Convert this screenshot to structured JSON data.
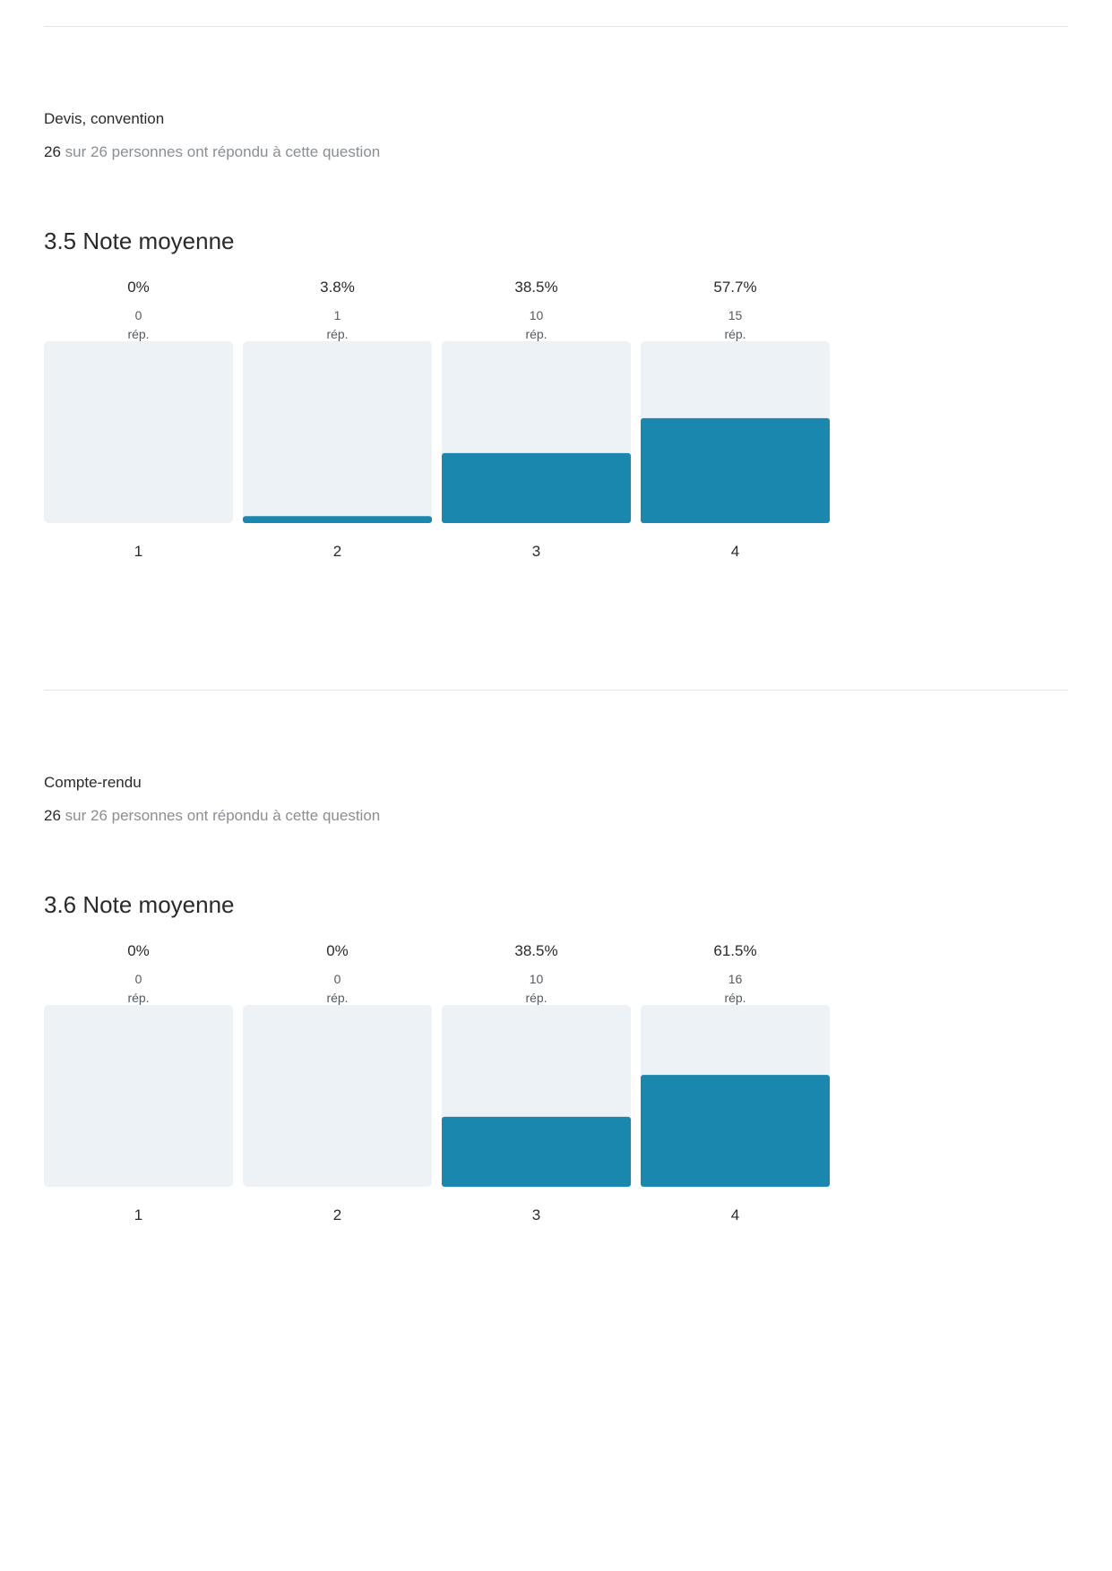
{
  "questions": [
    {
      "title": "Devis, convention",
      "responses": {
        "answered": "26",
        "text": "sur 26 personnes ont répondu à cette question"
      },
      "average": {
        "value": "3.5",
        "label": "Note moyenne"
      }
    },
    {
      "title": "Compte-rendu",
      "responses": {
        "answered": "26",
        "text": "sur 26 personnes ont répondu à cette question"
      },
      "average": {
        "value": "3.6",
        "label": "Note moyenne"
      }
    }
  ],
  "chart_data": [
    {
      "type": "bar",
      "categories": [
        "1",
        "2",
        "3",
        "4"
      ],
      "values": [
        0,
        3.8,
        38.5,
        57.7
      ],
      "value_labels": [
        "0%",
        "3.8%",
        "38.5%",
        "57.7%"
      ],
      "counts": [
        "0",
        "1",
        "10",
        "15"
      ],
      "count_unit": "rép.",
      "ylim": [
        0,
        100
      ],
      "colors": {
        "bar": "#1a87af",
        "track": "#edf2f6"
      }
    },
    {
      "type": "bar",
      "categories": [
        "1",
        "2",
        "3",
        "4"
      ],
      "values": [
        0,
        0,
        38.5,
        61.5
      ],
      "value_labels": [
        "0%",
        "0%",
        "38.5%",
        "61.5%"
      ],
      "counts": [
        "0",
        "0",
        "10",
        "16"
      ],
      "count_unit": "rép.",
      "ylim": [
        0,
        100
      ],
      "colors": {
        "bar": "#1a87af",
        "track": "#edf2f6"
      }
    }
  ]
}
